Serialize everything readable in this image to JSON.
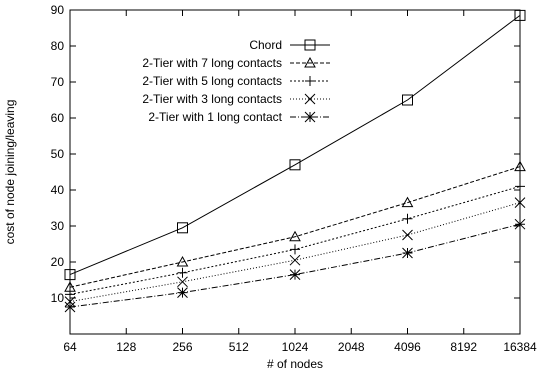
{
  "chart_data": {
    "type": "line",
    "title": "",
    "xlabel": "# of nodes",
    "ylabel": "cost of node joining/leaving",
    "x_scale": "log2",
    "xlim": [
      64,
      16384
    ],
    "ylim": [
      0,
      90
    ],
    "x_ticks": [
      64,
      128,
      256,
      512,
      1024,
      2048,
      4096,
      8192,
      16384
    ],
    "y_ticks": [
      10,
      20,
      30,
      40,
      50,
      60,
      70,
      80,
      90
    ],
    "legend_position": "top-right",
    "grid": false,
    "series": [
      {
        "name": "Chord",
        "marker": "square",
        "dash": "solid",
        "x": [
          64,
          256,
          1024,
          4096,
          16384
        ],
        "y": [
          16.5,
          29.5,
          47,
          65,
          88.5
        ]
      },
      {
        "name": "2-Tier with 7 long contacts",
        "marker": "triangle",
        "dash": "dashed",
        "x": [
          64,
          256,
          1024,
          4096,
          16384
        ],
        "y": [
          13,
          20,
          27,
          36.5,
          46.5
        ]
      },
      {
        "name": "2-Tier with 5 long contacts",
        "marker": "plus",
        "dash": "dotted",
        "x": [
          64,
          256,
          1024,
          4096,
          16384
        ],
        "y": [
          11,
          17,
          23.5,
          32,
          41
        ]
      },
      {
        "name": "2-Tier with 3 long contacts",
        "marker": "cross",
        "dash": "fine-dotted",
        "x": [
          64,
          256,
          1024,
          4096,
          16384
        ],
        "y": [
          9,
          14.5,
          20.5,
          27.5,
          36.5
        ]
      },
      {
        "name": "2-Tier with 1 long contact",
        "marker": "star",
        "dash": "dash-dot",
        "x": [
          64,
          256,
          1024,
          4096,
          16384
        ],
        "y": [
          7.5,
          11.5,
          16.5,
          22.5,
          30.5
        ]
      }
    ]
  }
}
